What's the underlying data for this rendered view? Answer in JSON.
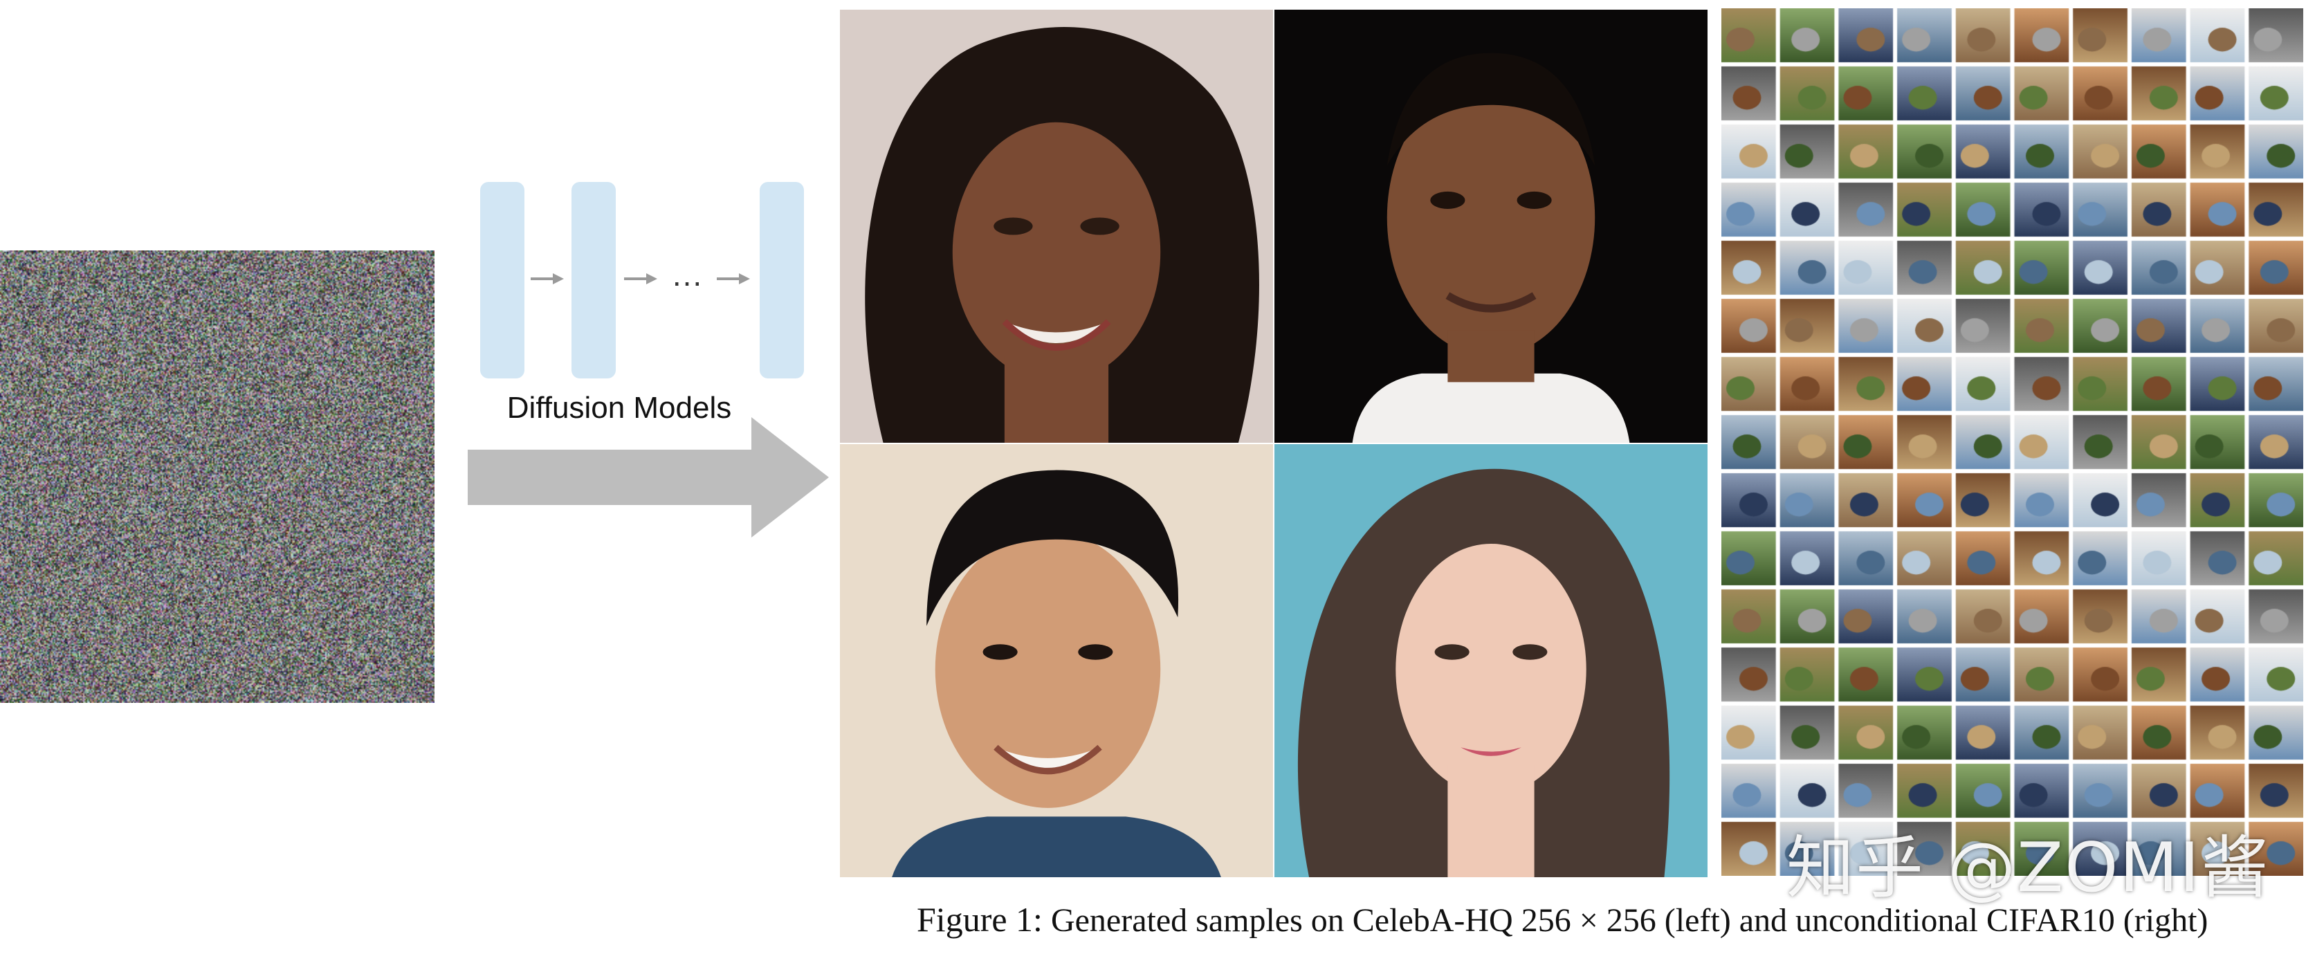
{
  "diagram": {
    "noise_image": "gaussian-noise",
    "steps_label": "Diffusion Models",
    "ellipsis": "...",
    "step_color": "#d2e6f4",
    "arrow_color": "#bdbdbd"
  },
  "faces": [
    {
      "name": "celeba-sample-1",
      "skin": "#7a4a33",
      "hair": "#1e1410",
      "bg": "#d9cdc8"
    },
    {
      "name": "celeba-sample-2",
      "skin": "#7b4d33",
      "hair": "#120c09",
      "bg": "#0a0808"
    },
    {
      "name": "celeba-sample-3",
      "skin": "#d19c76",
      "hair": "#141010",
      "bg": "#e9dccb"
    },
    {
      "name": "celeba-sample-4",
      "skin": "#efc9b6",
      "hair": "#4a3a33",
      "bg": "#6ab7c9"
    }
  ],
  "cifar": {
    "rows": 15,
    "cols": 10
  },
  "watermark": "知乎 @ZOMI酱",
  "caption": {
    "figure_label": "Figure 1:",
    "text": "Generated samples on CelebA-HQ 256 × 256 (left) and unconditional CIFAR10 (right)"
  }
}
